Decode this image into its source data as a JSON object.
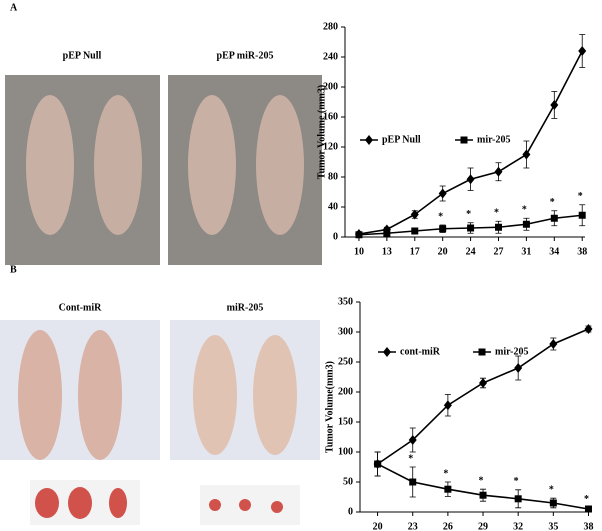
{
  "panels": [
    {
      "label": "A",
      "photo_labels": [
        "pEP Null",
        "pEP miR-205"
      ]
    },
    {
      "label": "B",
      "photo_labels": [
        "Cont-miR",
        "miR-205"
      ]
    }
  ],
  "chart_data": [
    {
      "type": "line",
      "ylabel": "Tumor Volume (mm3)",
      "categories": [
        "10",
        "13",
        "17",
        "20",
        "24",
        "27",
        "31",
        "34",
        "38"
      ],
      "ylim": [
        0,
        280
      ],
      "yticks": [
        0,
        40,
        80,
        120,
        160,
        200,
        240,
        280
      ],
      "legend": "upper left",
      "series": [
        {
          "name": "pEP Null",
          "color": "#000000",
          "marker": "diamond",
          "values": [
            4,
            10,
            30,
            58,
            77,
            87,
            110,
            176,
            248
          ],
          "errors": [
            2,
            3,
            5,
            10,
            15,
            12,
            18,
            18,
            22
          ]
        },
        {
          "name": "mir-205",
          "color": "#000000",
          "marker": "square",
          "values": [
            3,
            5,
            8,
            11,
            12,
            13,
            17,
            25,
            29
          ],
          "errors": [
            1,
            2,
            3,
            5,
            7,
            8,
            8,
            10,
            14
          ]
        }
      ],
      "annotations": [
        {
          "text": "*",
          "x": "20"
        },
        {
          "text": "*",
          "x": "24"
        },
        {
          "text": "*",
          "x": "27"
        },
        {
          "text": "*",
          "x": "31"
        },
        {
          "text": "*",
          "x": "34"
        },
        {
          "text": "*",
          "x": "38"
        }
      ]
    },
    {
      "type": "line",
      "ylabel": "Tumor Volume(mm3)",
      "categories": [
        "20",
        "23",
        "26",
        "29",
        "32",
        "35",
        "38"
      ],
      "ylim": [
        0,
        350
      ],
      "yticks": [
        0,
        50,
        100,
        150,
        200,
        250,
        300,
        350
      ],
      "legend": "upper left",
      "series": [
        {
          "name": "cont-miR",
          "color": "#000000",
          "marker": "diamond",
          "values": [
            80,
            120,
            178,
            215,
            240,
            280,
            305
          ],
          "errors": [
            20,
            20,
            18,
            8,
            20,
            10,
            5
          ]
        },
        {
          "name": "mir-205",
          "color": "#000000",
          "marker": "square",
          "values": [
            80,
            50,
            38,
            28,
            22,
            15,
            5
          ],
          "errors": [
            20,
            25,
            12,
            10,
            15,
            8,
            2
          ]
        }
      ],
      "annotations": [
        {
          "text": "*",
          "x": "23"
        },
        {
          "text": "*",
          "x": "26"
        },
        {
          "text": "*",
          "x": "29"
        },
        {
          "text": "*",
          "x": "32"
        },
        {
          "text": "*",
          "x": "35"
        },
        {
          "text": "*",
          "x": "38"
        }
      ]
    }
  ]
}
